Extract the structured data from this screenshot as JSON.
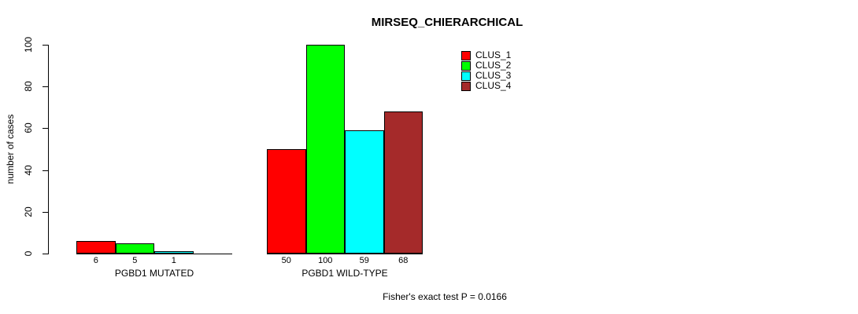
{
  "chart_data": {
    "type": "bar",
    "title": "MIRSEQ_CHIERARCHICAL",
    "xlabel": "",
    "ylabel": "number of cases",
    "ylim": [
      0,
      100
    ],
    "yticks": [
      0,
      20,
      40,
      60,
      80,
      100
    ],
    "categories": [
      "PGBD1 MUTATED",
      "PGBD1 WILD-TYPE"
    ],
    "series": [
      {
        "name": "CLUS_1",
        "color": "#ff0000",
        "values": [
          6,
          50
        ]
      },
      {
        "name": "CLUS_2",
        "color": "#00ff00",
        "values": [
          5,
          100
        ]
      },
      {
        "name": "CLUS_3",
        "color": "#00ffff",
        "values": [
          1,
          59
        ]
      },
      {
        "name": "CLUS_4",
        "color": "#a52a2a",
        "values": [
          0,
          68
        ]
      }
    ],
    "bar_labels": [
      [
        "6",
        "5",
        "1",
        ""
      ],
      [
        "50",
        "100",
        "59",
        "68"
      ]
    ],
    "legend": {
      "position": "top-right",
      "entries": [
        "CLUS_1",
        "CLUS_2",
        "CLUS_3",
        "CLUS_4"
      ]
    },
    "annotation": "Fisher's exact test P = 0.0166",
    "grid": false,
    "background": "#ffffff",
    "text_color": "#000000"
  }
}
